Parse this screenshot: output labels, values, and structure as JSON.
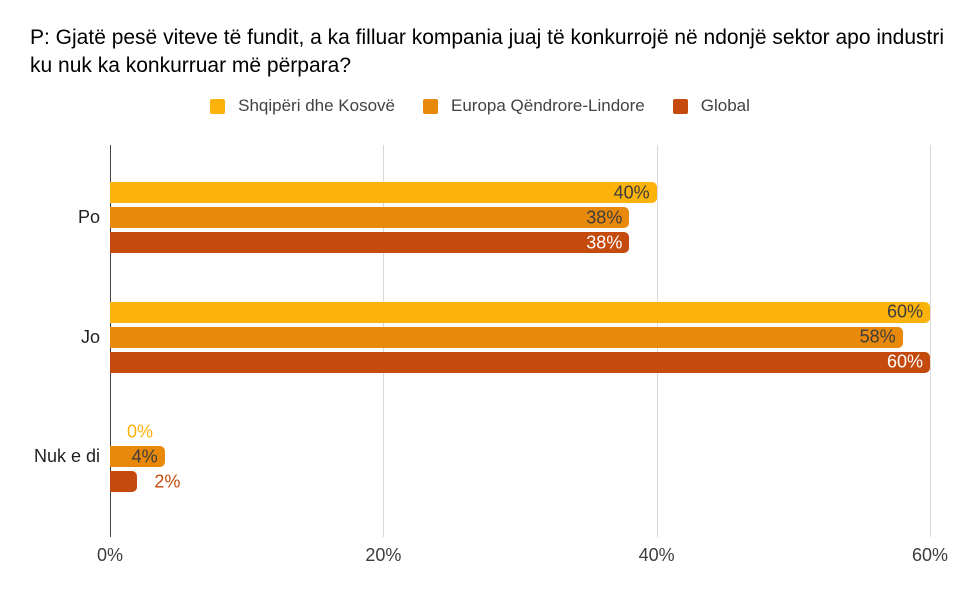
{
  "title": "P: Gjatë pesë viteve të fundit, a ka filluar kompania juaj të konkurrojë në ndonjë sektor apo industri ku nuk ka konkurruar më përpara?",
  "chart_data": {
    "type": "bar",
    "orientation": "horizontal",
    "title": "P: Gjatë pesë viteve të fundit, a ka filluar kompania juaj të konkurrojë në ndonjë sektor apo industri ku nuk ka konkurruar më përpara?",
    "categories": [
      "Po",
      "Jo",
      "Nuk e di"
    ],
    "series": [
      {
        "name": "Shqipëri dhe Kosovë",
        "color": "#FBB20B",
        "label_color": "#3d3d3d",
        "values": [
          40,
          60,
          0
        ]
      },
      {
        "name": "Europa Qëndrore-Lindore",
        "color": "#E8890C",
        "label_color": "#3d3d3d",
        "values": [
          38,
          58,
          4
        ]
      },
      {
        "name": "Global",
        "color": "#C54A0D",
        "label_color": "#ffffff",
        "values": [
          38,
          60,
          2
        ]
      }
    ],
    "x_ticks": [
      "0%",
      "20%",
      "40%",
      "60%"
    ],
    "xlim": [
      0,
      60
    ],
    "value_suffix": "%",
    "xlabel": "",
    "ylabel": "",
    "grid": true,
    "legend_position": "top"
  },
  "colors": {
    "background": "#ffffff",
    "gridline": "#d9d9d9",
    "axis_line": "#424242",
    "title_text": "#000000",
    "legend_text": "#424242",
    "axis_label_text": "#3d3d3d",
    "category_text": "#1f1f1f"
  }
}
